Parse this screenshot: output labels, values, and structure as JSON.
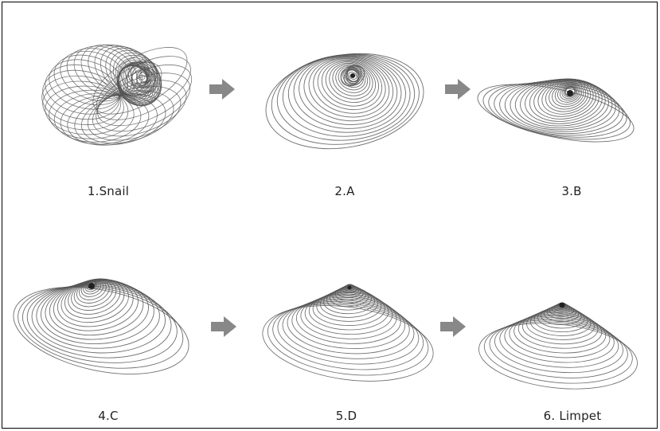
{
  "figure": {
    "stages": [
      {
        "id": "snail",
        "label": "1.Snail"
      },
      {
        "id": "a",
        "label": "2.A"
      },
      {
        "id": "b",
        "label": "3.B"
      },
      {
        "id": "c",
        "label": "4.C"
      },
      {
        "id": "d",
        "label": "5.D"
      },
      {
        "id": "limpet",
        "label": "6. Limpet"
      }
    ],
    "arrow_count": 4,
    "colors": {
      "stroke": "#555555",
      "arrow": "#888888",
      "frame": "#000000"
    }
  }
}
